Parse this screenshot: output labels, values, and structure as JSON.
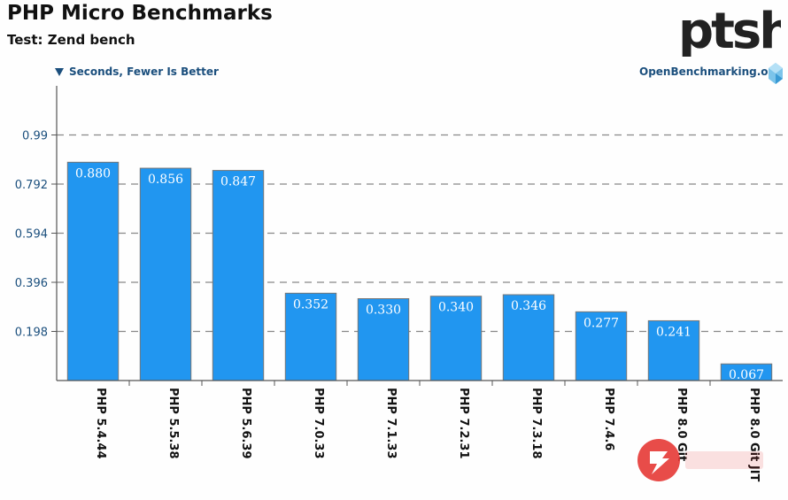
{
  "header": {
    "title": "PHP Micro Benchmarks",
    "subtitle": "Test: Zend bench",
    "units": "Seconds, Fewer Is Better",
    "site": "OpenBenchmarking.org",
    "logo_text": "ptsh"
  },
  "colors": {
    "bar": "#2196f0",
    "bar_border": "#777777",
    "grid": "#888888",
    "axis": "#555555",
    "accent": "#1b4f7d"
  },
  "chart_data": {
    "type": "bar",
    "title": "PHP Micro Benchmarks",
    "subtitle": "Test: Zend bench",
    "ylabel": "Seconds, Fewer Is Better",
    "categories": [
      "PHP 5.4.44",
      "PHP 5.5.38",
      "PHP 5.6.39",
      "PHP 7.0.33",
      "PHP 7.1.33",
      "PHP 7.2.31",
      "PHP 7.3.18",
      "PHP 7.4.6",
      "PHP 8.0 Git",
      "PHP 8.0 Git JIT"
    ],
    "values": [
      0.88,
      0.856,
      0.847,
      0.352,
      0.33,
      0.34,
      0.346,
      0.277,
      0.241,
      0.067
    ],
    "value_labels": [
      "0.880",
      "0.856",
      "0.847",
      "0.352",
      "0.330",
      "0.340",
      "0.346",
      "0.277",
      "0.241",
      "0.067"
    ],
    "yticks": [
      0.198,
      0.396,
      0.594,
      0.792,
      0.99
    ],
    "ytick_labels": [
      "0.198",
      "0.396",
      "0.594",
      "0.792",
      "0.99"
    ],
    "ylim": [
      0,
      1.188
    ],
    "grid": true
  }
}
